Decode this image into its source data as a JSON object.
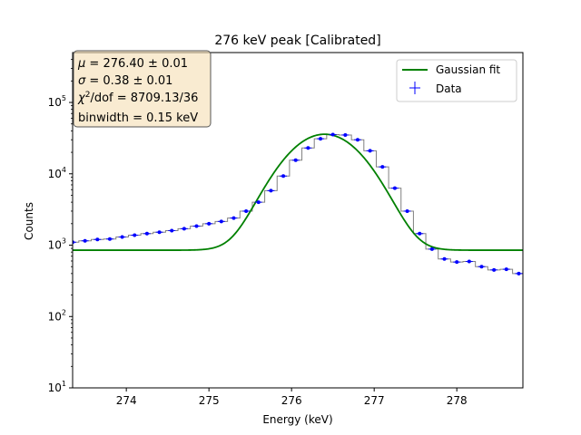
{
  "chart_data": {
    "type": "scatter",
    "title": "276 keV peak [Calibrated]",
    "xlabel": "Energy (keV)",
    "ylabel": "Counts",
    "xlim": [
      273.35,
      278.8
    ],
    "ylim": [
      10,
      500000
    ],
    "yscale": "log",
    "x_ticks": [
      274,
      275,
      276,
      277,
      278
    ],
    "x_tick_labels": [
      "274",
      "275",
      "276",
      "277",
      "278"
    ],
    "y_ticks": [
      10,
      100,
      1000,
      10000,
      100000
    ],
    "y_tick_bases": [
      "10",
      "10",
      "10",
      "10",
      "10"
    ],
    "y_tick_exps": [
      "1",
      "2",
      "3",
      "4",
      "5"
    ],
    "legend_position": "top-right",
    "series": [
      {
        "name": "Gaussian fit",
        "kind": "line",
        "color": "#008000",
        "mu": 276.4,
        "sigma": 0.38,
        "amplitude": 35000,
        "baseline": 850
      },
      {
        "name": "Data",
        "kind": "points",
        "color": "#0000ff",
        "x": [
          273.35,
          273.5,
          273.65,
          273.8,
          273.95,
          274.1,
          274.25,
          274.4,
          274.55,
          274.7,
          274.85,
          275.0,
          275.15,
          275.3,
          275.45,
          275.6,
          275.75,
          275.9,
          276.05,
          276.2,
          276.35,
          276.5,
          276.65,
          276.8,
          276.95,
          277.1,
          277.25,
          277.4,
          277.55,
          277.7,
          277.85,
          278.0,
          278.15,
          278.3,
          278.45,
          278.6,
          278.75
        ],
        "y": [
          1100,
          1150,
          1200,
          1220,
          1300,
          1380,
          1450,
          1520,
          1600,
          1700,
          1850,
          2000,
          2150,
          2400,
          3000,
          4000,
          5800,
          9300,
          15500,
          23000,
          31000,
          35500,
          35000,
          30000,
          21000,
          12500,
          6300,
          3000,
          1450,
          880,
          640,
          580,
          590,
          500,
          450,
          460,
          400
        ]
      }
    ],
    "annotation": {
      "lines": [
        {
          "sym": "μ",
          "sup": "",
          "rest": " = 276.40 ± 0.01"
        },
        {
          "sym": "σ",
          "sup": "",
          "rest": " = 0.38 ± 0.01"
        },
        {
          "sym": "χ",
          "sup": "2",
          "rest": "/dof = 8709.13/36"
        }
      ],
      "footer": "binwidth = 0.15 keV"
    }
  }
}
